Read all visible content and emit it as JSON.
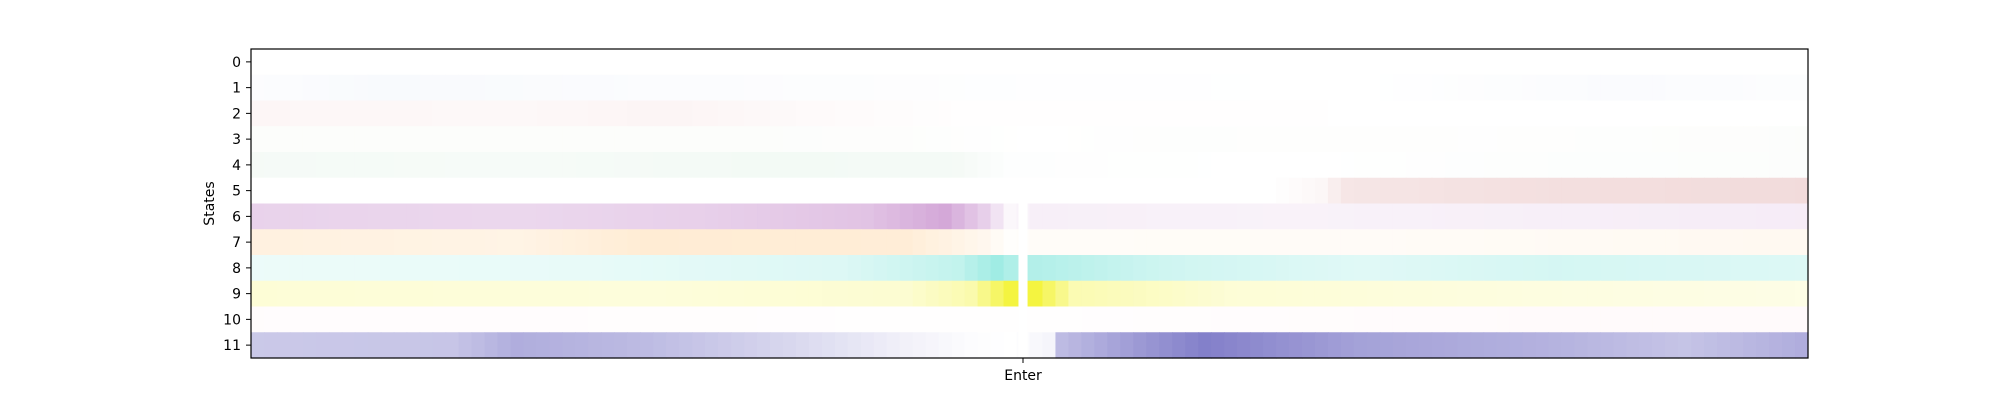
{
  "chart_data": {
    "type": "heatmap",
    "title": "",
    "xlabel": "",
    "ylabel": "States",
    "x_tick_labels": [
      "Enter"
    ],
    "y_tick_labels": [
      "0",
      "1",
      "2",
      "3",
      "4",
      "5",
      "6",
      "7",
      "8",
      "9",
      "10",
      "11"
    ],
    "n_columns": 120,
    "gap_column": 59,
    "state_colors": [
      "#b0b0b0",
      "#a9bde6",
      "#e8a8a8",
      "#c9d8b8",
      "#a8d8b8",
      "#d08080",
      "#b060b8",
      "#ffc070",
      "#40d8c8",
      "#f0f000",
      "#ffb0c0",
      "#5a55b8"
    ],
    "rows": [
      {
        "state": "0",
        "segments": [
          [
            0,
            0.0
          ],
          [
            119,
            0.0
          ]
        ]
      },
      {
        "state": "1",
        "segments": [
          [
            0,
            0.04
          ],
          [
            10,
            0.08
          ],
          [
            30,
            0.05
          ],
          [
            55,
            0.02
          ],
          [
            85,
            0.0
          ],
          [
            105,
            0.06
          ],
          [
            119,
            0.03
          ]
        ]
      },
      {
        "state": "2",
        "segments": [
          [
            0,
            0.1
          ],
          [
            20,
            0.08
          ],
          [
            32,
            0.12
          ],
          [
            42,
            0.06
          ],
          [
            56,
            0.01
          ],
          [
            119,
            0.0
          ]
        ]
      },
      {
        "state": "3",
        "segments": [
          [
            0,
            0.06
          ],
          [
            30,
            0.06
          ],
          [
            50,
            0.04
          ],
          [
            60,
            0.0
          ],
          [
            70,
            0.03
          ],
          [
            95,
            0.02
          ],
          [
            119,
            0.05
          ]
        ]
      },
      {
        "state": "4",
        "segments": [
          [
            0,
            0.12
          ],
          [
            20,
            0.1
          ],
          [
            40,
            0.14
          ],
          [
            54,
            0.12
          ],
          [
            58,
            0.02
          ],
          [
            80,
            0.0
          ],
          [
            100,
            0.03
          ],
          [
            119,
            0.04
          ]
        ]
      },
      {
        "state": "5",
        "segments": [
          [
            0,
            0.0
          ],
          [
            78,
            0.0
          ],
          [
            82,
            0.06
          ],
          [
            84,
            0.2
          ],
          [
            100,
            0.25
          ],
          [
            119,
            0.28
          ]
        ]
      },
      {
        "state": "6",
        "segments": [
          [
            0,
            0.28
          ],
          [
            20,
            0.25
          ],
          [
            35,
            0.3
          ],
          [
            47,
            0.38
          ],
          [
            53,
            0.55
          ],
          [
            56,
            0.3
          ],
          [
            58,
            0.05
          ],
          [
            60,
            0.1
          ],
          [
            80,
            0.08
          ],
          [
            119,
            0.12
          ]
        ]
      },
      {
        "state": "7",
        "segments": [
          [
            0,
            0.22
          ],
          [
            20,
            0.18
          ],
          [
            30,
            0.3
          ],
          [
            50,
            0.28
          ],
          [
            56,
            0.12
          ],
          [
            58,
            0.02
          ],
          [
            60,
            0.05
          ],
          [
            90,
            0.06
          ],
          [
            119,
            0.1
          ]
        ]
      },
      {
        "state": "8",
        "segments": [
          [
            0,
            0.1
          ],
          [
            25,
            0.12
          ],
          [
            45,
            0.18
          ],
          [
            54,
            0.32
          ],
          [
            57,
            0.5
          ],
          [
            58,
            0.42
          ],
          [
            60,
            0.4
          ],
          [
            70,
            0.25
          ],
          [
            85,
            0.16
          ],
          [
            100,
            0.22
          ],
          [
            119,
            0.18
          ]
        ]
      },
      {
        "state": "9",
        "segments": [
          [
            0,
            0.16
          ],
          [
            30,
            0.14
          ],
          [
            50,
            0.18
          ],
          [
            55,
            0.32
          ],
          [
            57,
            0.6
          ],
          [
            58,
            0.75
          ],
          [
            60,
            0.75
          ],
          [
            63,
            0.3
          ],
          [
            75,
            0.16
          ],
          [
            100,
            0.12
          ],
          [
            119,
            0.1
          ]
        ]
      },
      {
        "state": "10",
        "segments": [
          [
            0,
            0.04
          ],
          [
            30,
            0.03
          ],
          [
            56,
            0.01
          ],
          [
            80,
            0.04
          ],
          [
            100,
            0.06
          ],
          [
            119,
            0.06
          ]
        ]
      },
      {
        "state": "11",
        "segments": [
          [
            0,
            0.32
          ],
          [
            15,
            0.34
          ],
          [
            20,
            0.48
          ],
          [
            30,
            0.4
          ],
          [
            42,
            0.22
          ],
          [
            50,
            0.08
          ],
          [
            55,
            0.02
          ],
          [
            58,
            0.0
          ],
          [
            61,
            0.06
          ],
          [
            62,
            0.4
          ],
          [
            68,
            0.6
          ],
          [
            73,
            0.75
          ],
          [
            85,
            0.55
          ],
          [
            100,
            0.45
          ],
          [
            110,
            0.35
          ],
          [
            119,
            0.48
          ]
        ]
      }
    ]
  }
}
